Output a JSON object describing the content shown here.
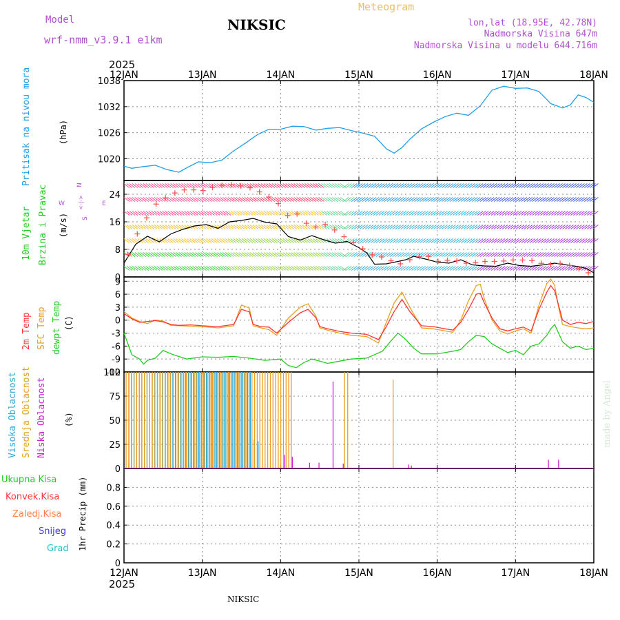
{
  "header": {
    "model_label": "Model",
    "model_name": "wrf-nmm_v3.9.1 e1km",
    "station": "NIKSIC",
    "title": "Meteogram",
    "lonlat": "lon,lat (18.95E, 42.78N)",
    "elevation": "Nadmorska Visina 647m",
    "model_elevation": "Nadmorska Visina u modelu 644.716m",
    "year": "2025",
    "footer_station": "NIKSIC",
    "watermark": "made by Angel"
  },
  "colors": {
    "pressure": "#1e9fe8",
    "wind_label": "#22cc22",
    "temp2m": "#ff3333",
    "sfc_temp": "#e8a020",
    "dewpt": "#22cc22",
    "high_cloud": "#2aa8d8",
    "mid_cloud": "#e8a020",
    "low_cloud": "#cc22cc",
    "grid": "#888888",
    "header_purple": "#b050d0",
    "title_orange": "#e8c070"
  },
  "chart_data": [
    {
      "type": "line",
      "panel": "pressure",
      "ylabel": "Pritisak na nivou mora",
      "unit": "(hPa)",
      "ylim": [
        1015,
        1038
      ],
      "yticks": [
        1020,
        1026,
        1032,
        1038
      ],
      "x_ticks": [
        "12JAN",
        "13JAN",
        "14JAN",
        "15JAN",
        "16JAN",
        "17JAN",
        "18JAN"
      ],
      "grid": true,
      "series": [
        {
          "key": "pressure",
          "x": [
            0,
            0.1,
            0.25,
            0.4,
            0.55,
            0.7,
            0.8,
            0.95,
            1.1,
            1.25,
            1.4,
            1.55,
            1.7,
            1.85,
            2.0,
            2.15,
            2.3,
            2.45,
            2.6,
            2.75,
            2.9,
            3.05,
            3.2,
            3.35,
            3.45,
            3.55,
            3.65,
            3.8,
            3.95,
            4.1,
            4.25,
            4.4,
            4.55,
            4.7,
            4.85,
            5.0,
            5.15,
            5.3,
            5.45,
            5.6,
            5.7,
            5.8,
            5.9,
            6.0
          ],
          "values": [
            1018.3,
            1017.8,
            1018.2,
            1018.5,
            1017.5,
            1016.9,
            1017.9,
            1019.3,
            1019.1,
            1019.7,
            1021.8,
            1023.6,
            1025.5,
            1026.8,
            1026.8,
            1027.5,
            1027.4,
            1026.6,
            1027.0,
            1027.2,
            1026.5,
            1025.9,
            1025.2,
            1022.3,
            1021.3,
            1022.6,
            1024.5,
            1026.9,
            1028.4,
            1029.7,
            1030.5,
            1030.0,
            1032.2,
            1035.8,
            1036.7,
            1036.2,
            1036.3,
            1035.5,
            1032.7,
            1031.7,
            1032.4,
            1034.7,
            1034.1,
            1033.0
          ]
        }
      ]
    },
    {
      "type": "line",
      "panel": "wind",
      "ylabel": "10m Vjetar Brzina i Pravac",
      "unit": "(m/s)",
      "compass": {
        "north": "N",
        "east": "E",
        "south": "S",
        "west": "W",
        "arrows": "<-|->"
      },
      "ylim": [
        0,
        28
      ],
      "yticks": [
        0,
        8,
        16,
        24
      ],
      "grid": true,
      "series": [
        {
          "key": "wind_speed",
          "x": [
            0,
            0.15,
            0.3,
            0.45,
            0.6,
            0.75,
            0.9,
            1.05,
            1.2,
            1.35,
            1.5,
            1.65,
            1.8,
            1.95,
            2.1,
            2.25,
            2.4,
            2.55,
            2.7,
            2.85,
            3.0,
            3.1,
            3.2,
            3.35,
            3.5,
            3.6,
            3.7,
            3.85,
            4.0,
            4.15,
            4.3,
            4.45,
            4.6,
            4.75,
            4.9,
            5.05,
            5.2,
            5.35,
            5.5,
            5.65,
            5.8,
            5.9,
            6.0
          ],
          "values": [
            4.0,
            9.5,
            11.8,
            10.2,
            12.5,
            13.8,
            14.8,
            15.2,
            14.1,
            16.0,
            16.4,
            17.0,
            15.9,
            15.4,
            11.7,
            10.7,
            12.0,
            10.8,
            9.8,
            10.3,
            8.5,
            7.0,
            3.7,
            3.8,
            4.5,
            5.0,
            6.0,
            5.2,
            4.3,
            4.0,
            5.0,
            3.5,
            3.2,
            3.1,
            4.0,
            3.3,
            3.1,
            3.5,
            4.0,
            3.5,
            3.0,
            2.5,
            1.2
          ]
        },
        {
          "key": "wind_gust",
          "x": [
            0,
            0.2,
            0.4,
            0.6,
            0.8,
            1.0,
            1.2,
            1.4,
            1.6,
            1.8,
            2.0,
            2.1,
            2.2,
            2.4,
            2.55,
            2.7,
            2.85,
            3.0,
            3.15,
            3.35,
            3.5,
            3.65,
            3.85,
            4.0,
            4.2,
            4.4,
            4.6,
            4.8,
            5.0,
            5.2,
            5.4,
            5.6,
            5.8,
            6.0
          ],
          "values": [
            4.0,
            14.0,
            21.0,
            24.0,
            25.5,
            25.0,
            26.5,
            26.8,
            26.0,
            24.0,
            20.8,
            17.5,
            18.5,
            14.0,
            15.5,
            13.5,
            11.0,
            9.0,
            6.5,
            5.5,
            3.5,
            5.0,
            6.5,
            4.5,
            5.0,
            3.8,
            4.5,
            4.5,
            5.0,
            4.8,
            3.5,
            4.0,
            2.5,
            0.5
          ]
        }
      ]
    },
    {
      "type": "line",
      "panel": "temperature",
      "ylabel": [
        "2m Temp",
        "SFC Temp",
        "dewpt Temp"
      ],
      "unit": "(C)",
      "ylim": [
        -12,
        10
      ],
      "yticks": [
        -12,
        -9,
        -6,
        -3,
        0,
        3,
        6,
        9
      ],
      "grid": true,
      "series": [
        {
          "key": "temp2m",
          "x": [
            0,
            0.1,
            0.2,
            0.3,
            0.4,
            0.5,
            0.6,
            0.7,
            0.85,
            1.0,
            1.2,
            1.4,
            1.5,
            1.6,
            1.65,
            1.75,
            1.85,
            1.95,
            2.1,
            2.25,
            2.35,
            2.45,
            2.5,
            2.6,
            2.75,
            2.9,
            3.1,
            3.25,
            3.35,
            3.45,
            3.55,
            3.65,
            3.8,
            3.95,
            4.1,
            4.2,
            4.3,
            4.4,
            4.5,
            4.55,
            4.6,
            4.7,
            4.8,
            4.9,
            5.0,
            5.1,
            5.2,
            5.3,
            5.4,
            5.45,
            5.5,
            5.55,
            5.6,
            5.7,
            5.8,
            5.9,
            6.0
          ],
          "values": [
            1.5,
            0.3,
            -0.5,
            -0.3,
            -0.1,
            -0.4,
            -1.0,
            -1.2,
            -1.1,
            -1.3,
            -1.5,
            -1.0,
            2.5,
            1.9,
            -1.0,
            -1.5,
            -1.6,
            -3.0,
            -0.5,
            1.7,
            2.5,
            0.6,
            -1.5,
            -2.0,
            -2.6,
            -3.0,
            -3.3,
            -4.5,
            -1.5,
            2.0,
            4.8,
            2.0,
            -1.3,
            -1.5,
            -2.0,
            -2.3,
            -0.5,
            2.5,
            6.0,
            6.2,
            4.0,
            0.5,
            -2.0,
            -2.5,
            -2.0,
            -1.6,
            -2.5,
            2.5,
            6.5,
            8.0,
            6.8,
            3.5,
            0.0,
            -1.0,
            -0.5,
            -0.8,
            -0.3
          ]
        },
        {
          "key": "sfc_temp",
          "x": [
            0,
            0.1,
            0.2,
            0.3,
            0.4,
            0.5,
            0.6,
            0.7,
            0.85,
            1.0,
            1.2,
            1.4,
            1.5,
            1.6,
            1.65,
            1.75,
            1.85,
            1.95,
            2.1,
            2.25,
            2.35,
            2.45,
            2.5,
            2.6,
            2.75,
            2.9,
            3.1,
            3.25,
            3.35,
            3.45,
            3.55,
            3.65,
            3.8,
            3.95,
            4.1,
            4.2,
            4.3,
            4.4,
            4.5,
            4.55,
            4.6,
            4.7,
            4.8,
            4.9,
            5.0,
            5.1,
            5.2,
            5.3,
            5.4,
            5.45,
            5.5,
            5.55,
            5.6,
            5.7,
            5.8,
            5.9,
            6.0
          ],
          "values": [
            2.0,
            0.5,
            -0.3,
            -0.8,
            0.0,
            -0.2,
            -1.2,
            -1.3,
            -1.4,
            -1.5,
            -1.8,
            -1.3,
            3.5,
            2.8,
            -1.3,
            -1.8,
            -2.2,
            -3.5,
            0.5,
            3.0,
            3.8,
            1.0,
            -1.8,
            -2.3,
            -3.0,
            -3.5,
            -3.8,
            -5.3,
            -0.5,
            4.0,
            6.5,
            3.0,
            -1.8,
            -2.0,
            -2.5,
            -2.8,
            0.0,
            4.5,
            8.0,
            8.3,
            5.0,
            0.0,
            -2.5,
            -3.2,
            -2.5,
            -2.0,
            -3.0,
            3.5,
            8.5,
            9.5,
            8.0,
            3.0,
            -1.0,
            -1.5,
            -1.8,
            -2.0,
            -1.8
          ]
        },
        {
          "key": "dewpt",
          "x": [
            0,
            0.1,
            0.2,
            0.25,
            0.3,
            0.4,
            0.5,
            0.6,
            0.8,
            1.0,
            1.2,
            1.4,
            1.6,
            1.8,
            2.0,
            2.1,
            2.2,
            2.3,
            2.4,
            2.5,
            2.6,
            2.75,
            2.9,
            3.1,
            3.3,
            3.4,
            3.5,
            3.6,
            3.7,
            3.8,
            4.0,
            4.2,
            4.3,
            4.4,
            4.5,
            4.6,
            4.7,
            4.8,
            4.9,
            5.0,
            5.1,
            5.2,
            5.3,
            5.4,
            5.45,
            5.5,
            5.6,
            5.7,
            5.8,
            5.9,
            6.0
          ],
          "values": [
            -3.0,
            -8.0,
            -9.0,
            -10.2,
            -9.3,
            -8.8,
            -7.0,
            -7.8,
            -9.0,
            -8.5,
            -8.6,
            -8.4,
            -8.8,
            -9.3,
            -9.0,
            -10.5,
            -11.0,
            -9.8,
            -9.0,
            -9.5,
            -10.0,
            -9.5,
            -9.0,
            -8.8,
            -7.2,
            -5.0,
            -3.0,
            -4.5,
            -6.5,
            -7.8,
            -7.8,
            -7.2,
            -6.8,
            -5.0,
            -3.5,
            -3.8,
            -5.5,
            -6.5,
            -7.5,
            -7.0,
            -8.0,
            -6.0,
            -5.5,
            -3.5,
            -2.0,
            -1.0,
            -5.0,
            -6.5,
            -6.0,
            -6.8,
            -6.5
          ]
        }
      ]
    },
    {
      "type": "bar",
      "panel": "cloud",
      "ylabel": [
        "Visoka Oblacnost",
        "Srednja Oblacnost",
        "Niska Oblacnost"
      ],
      "unit": "(%)",
      "ylim": [
        0,
        100
      ],
      "yticks": [
        0,
        25,
        50,
        75,
        100
      ],
      "grid": true,
      "series": [
        {
          "key": "high_cloud",
          "name": "Visoka Oblacnost",
          "x_start": 0.05,
          "x_end": 1.6,
          "count": 48,
          "value": 100,
          "extra": [
            {
              "x": 1.65,
              "value": 30
            },
            {
              "x": 1.7,
              "value": 28
            }
          ]
        },
        {
          "key": "mid_cloud",
          "name": "Srednja Oblacnost",
          "x_start": 0.04,
          "x_end": 2.15,
          "count": 64,
          "value": 100,
          "extra": [
            {
              "x": 2.83,
              "value": 100
            },
            {
              "x": 2.87,
              "value": 100
            },
            {
              "x": 3.45,
              "value": 92
            }
          ]
        },
        {
          "key": "low_cloud",
          "name": "Niska Oblacnost",
          "bars": [
            {
              "x": 2.05,
              "value": 14
            },
            {
              "x": 2.15,
              "value": 12
            },
            {
              "x": 2.37,
              "value": 6
            },
            {
              "x": 2.49,
              "value": 6
            },
            {
              "x": 2.67,
              "value": 90
            },
            {
              "x": 2.8,
              "value": 5
            },
            {
              "x": 3.63,
              "value": 4
            },
            {
              "x": 3.67,
              "value": 3
            },
            {
              "x": 5.42,
              "value": 9
            },
            {
              "x": 5.55,
              "value": 9
            }
          ]
        }
      ]
    },
    {
      "type": "bar",
      "panel": "precip",
      "ylabel": "1hr Precip (mm)",
      "legend": [
        "Ukupna Kisa",
        "Konvek.Kisa",
        "Zaledj.Kisa",
        "Snijeg",
        "Grad"
      ],
      "legend_colors": [
        "#22cc22",
        "#ff3333",
        "#ff8040",
        "#3a3ad8",
        "#20c8c8"
      ],
      "ylim": [
        0,
        1.0
      ],
      "yticks": [
        0,
        0.2,
        0.4,
        0.6,
        0.8
      ],
      "grid": true,
      "values": []
    }
  ]
}
